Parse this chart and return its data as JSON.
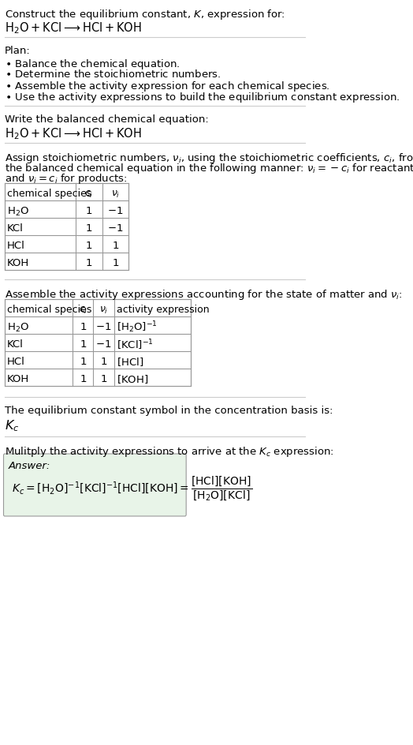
{
  "title_line1": "Construct the equilibrium constant, $K$, expression for:",
  "title_line2": "$\\mathrm{H_2O + KCl \\longrightarrow HCl + KOH}$",
  "plan_header": "Plan:",
  "plan_items": [
    "\\textbf{\\cdot} Balance the chemical equation.",
    "\\textbf{\\cdot} Determine the stoichiometric numbers.",
    "\\textbf{\\cdot} Assemble the activity expression for each chemical species.",
    "\\textbf{\\cdot} Use the activity expressions to build the equilibrium constant expression."
  ],
  "balanced_eq_header": "Write the balanced chemical equation:",
  "balanced_eq": "$\\mathrm{H_2O + KCl \\longrightarrow HCl + KOH}$",
  "stoich_header": "Assign stoichiometric numbers, $\\nu_i$, using the stoichiometric coefficients, $c_i$, from\nthe balanced chemical equation in the following manner: $\\nu_i = -c_i$ for reactants\nand $\\nu_i = c_i$ for products:",
  "table1_headers": [
    "chemical species",
    "$c_i$",
    "$\\nu_i$"
  ],
  "table1_rows": [
    [
      "$\\mathrm{H_2O}$",
      "1",
      "$-1$"
    ],
    [
      "KCl",
      "1",
      "$-1$"
    ],
    [
      "HCl",
      "1",
      "1"
    ],
    [
      "KOH",
      "1",
      "1"
    ]
  ],
  "activity_header": "Assemble the activity expressions accounting for the state of matter and $\\nu_i$:",
  "table2_headers": [
    "chemical species",
    "$c_i$",
    "$\\nu_i$",
    "activity expression"
  ],
  "table2_rows": [
    [
      "$\\mathrm{H_2O}$",
      "1",
      "$-1$",
      "$[\\mathrm{H_2O}]^{-1}$"
    ],
    [
      "KCl",
      "1",
      "$-1$",
      "$[\\mathrm{KCl}]^{-1}$"
    ],
    [
      "HCl",
      "1",
      "1",
      "$[\\mathrm{HCl}]$"
    ],
    [
      "KOH",
      "1",
      "1",
      "$[\\mathrm{KOH}]$"
    ]
  ],
  "kc_header": "The equilibrium constant symbol in the concentration basis is:",
  "kc_symbol": "$K_c$",
  "multiply_header": "Mulitply the activity expressions to arrive at the $K_c$ expression:",
  "answer_label": "Answer:",
  "answer_eq_line1": "$K_c = [\\mathrm{H_2O}]^{-1}\\,[\\mathrm{KCl}]^{-1}\\,[\\mathrm{HCl}]\\,[\\mathrm{KOH}]$",
  "answer_eq_line2": "$= \\dfrac{[\\mathrm{HCl}]\\,[\\mathrm{KOH}]}{[\\mathrm{H_2O}]\\,[\\mathrm{KCl}]}$",
  "bg_color": "#ffffff",
  "answer_box_color": "#e8f4e8",
  "table_line_color": "#aaaaaa",
  "text_color": "#000000",
  "font_size": 9.5
}
